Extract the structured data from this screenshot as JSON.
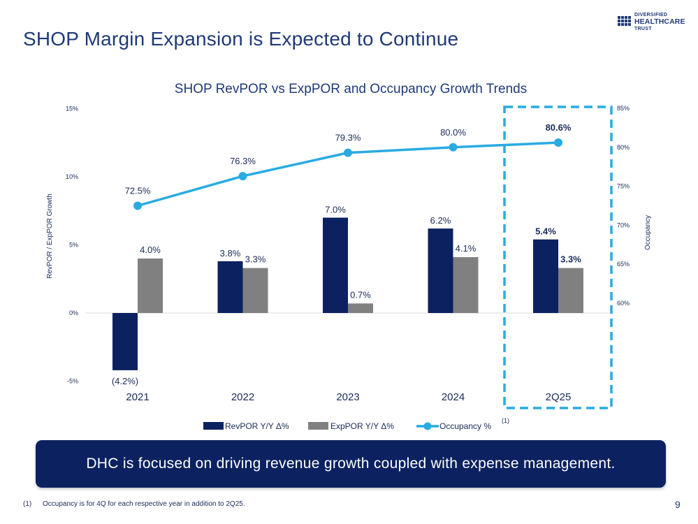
{
  "header": {
    "title": "SHOP Margin Expansion is Expected to Continue"
  },
  "logo": {
    "line1": "DIVERSIFIED",
    "line2": "HEALTHCARE",
    "line3": "TRUST"
  },
  "colors": {
    "title": "#1f3a78",
    "revpor": "#0c2160",
    "exppor": "#808080",
    "occupancy": "#29abe2",
    "highlight_border": "#29abe2",
    "callout_bg": "#0c2160"
  },
  "chart_data": {
    "type": "bar+line",
    "title": "SHOP RevPOR vs ExpPOR and Occupancy Growth Trends",
    "categories": [
      "2021",
      "2022",
      "2023",
      "2024",
      "2Q25"
    ],
    "series": [
      {
        "name": "RevPOR Y/Y Δ%",
        "type": "bar",
        "axis": "left",
        "values": [
          -4.2,
          3.8,
          7.0,
          6.2,
          5.4
        ],
        "labels": [
          "(4.2%)",
          "3.8%",
          "7.0%",
          "6.2%",
          "5.4%"
        ]
      },
      {
        "name": "ExpPOR Y/Y Δ%",
        "type": "bar",
        "axis": "left",
        "values": [
          4.0,
          3.3,
          0.7,
          4.1,
          3.3
        ],
        "labels": [
          "4.0%",
          "3.3%",
          "0.7%",
          "4.1%",
          "3.3%"
        ]
      },
      {
        "name": "Occupancy %",
        "type": "line",
        "axis": "right",
        "values": [
          72.5,
          76.3,
          79.3,
          80.0,
          80.6
        ],
        "labels": [
          "72.5%",
          "76.3%",
          "79.3%",
          "80.0%",
          "80.6%"
        ]
      }
    ],
    "ylabel_left": "RevPOR / ExpPOR Growth",
    "ylabel_right": "Occupancy",
    "ylim_left": [
      -5,
      15
    ],
    "yticks_left": [
      -5,
      0,
      5,
      10,
      15
    ],
    "ytick_labels_left": [
      "-5%",
      "0%",
      "5%",
      "10%",
      "15%"
    ],
    "ylim_right": [
      60,
      85
    ],
    "yticks_right": [
      60,
      65,
      70,
      75,
      80,
      85
    ],
    "ytick_labels_right": [
      "60%",
      "65%",
      "70%",
      "75%",
      "80%",
      "85%"
    ],
    "highlighted_category": "2Q25",
    "legend_position": "bottom",
    "legend_footnote_marker": "(1)"
  },
  "callout": {
    "text": "DHC is focused on driving revenue growth coupled with expense management."
  },
  "footnote": {
    "number": "(1)",
    "text": "Occupancy is for 4Q for each respective year in addition to 2Q25."
  },
  "page_number": "9"
}
